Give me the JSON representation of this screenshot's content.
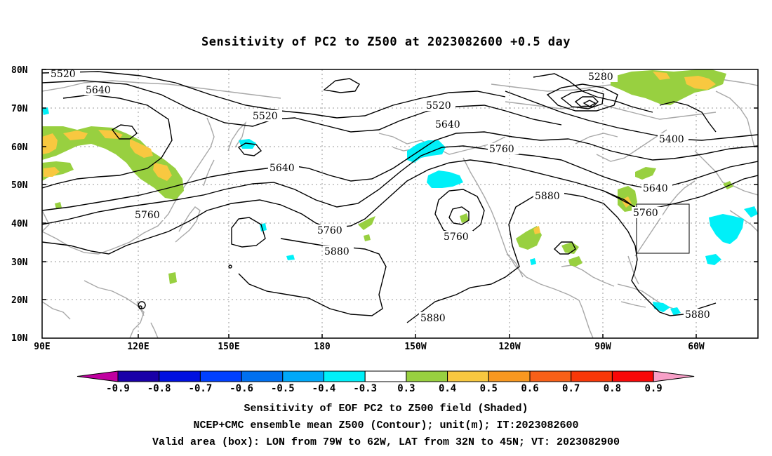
{
  "title": "Sensitivity of PC2 to Z500 at 2023082600 +0.5 day",
  "axes": {
    "lat_labels": [
      "80N",
      "70N",
      "60N",
      "50N",
      "40N",
      "30N",
      "20N",
      "10N"
    ],
    "lon_labels": [
      "90E",
      "120E",
      "150E",
      "180",
      "150W",
      "120W",
      "90W",
      "60W"
    ]
  },
  "contour_labels": [
    {
      "text": "5520",
      "id": "c5520-west"
    },
    {
      "text": "5640",
      "id": "c5640-west"
    },
    {
      "text": "5520",
      "id": "c5520-mid"
    },
    {
      "text": "5640",
      "id": "c5640-mid"
    },
    {
      "text": "5760",
      "id": "c5760-west"
    },
    {
      "text": "5760",
      "id": "c5760-mid"
    },
    {
      "text": "5880",
      "id": "c5880-mid"
    },
    {
      "text": "5520",
      "id": "c5520-pac"
    },
    {
      "text": "5640",
      "id": "c5640-pac"
    },
    {
      "text": "5760",
      "id": "c5760-pac"
    },
    {
      "text": "5760",
      "id": "c5760-low"
    },
    {
      "text": "5880",
      "id": "c5880-south"
    },
    {
      "text": "5880",
      "id": "c5880-am"
    },
    {
      "text": "5280",
      "id": "c5280"
    },
    {
      "text": "5400",
      "id": "c5400"
    },
    {
      "text": "5640",
      "id": "c5640-east"
    },
    {
      "text": "5760",
      "id": "c5760-east"
    },
    {
      "text": "5880",
      "id": "c5880-east"
    }
  ],
  "colorbar": {
    "labels": [
      "-0.9",
      "-0.8",
      "-0.7",
      "-0.6",
      "-0.5",
      "-0.4",
      "-0.3",
      "0.3",
      "0.4",
      "0.5",
      "0.6",
      "0.7",
      "0.8",
      "0.9"
    ],
    "colors": [
      "#1a00a8",
      "#0010e0",
      "#0040ff",
      "#0070f0",
      "#00a8f8",
      "#00f0f8",
      "#ffffff",
      "#98d040",
      "#f8c840",
      "#f89820",
      "#f86018",
      "#f83808",
      "#f80808"
    ],
    "low_end_color": "#c000a0",
    "high_end_color": "#f8a0c8"
  },
  "captions": [
    "Sensitivity of EOF PC2 to Z500 field (Shaded)",
    "NCEP+CMC ensemble mean Z500 (Contour); unit(m); IT:2023082600",
    "Valid area (box): LON from 79W to 62W, LAT from 32N to 45N; VT: 2023082900"
  ]
}
